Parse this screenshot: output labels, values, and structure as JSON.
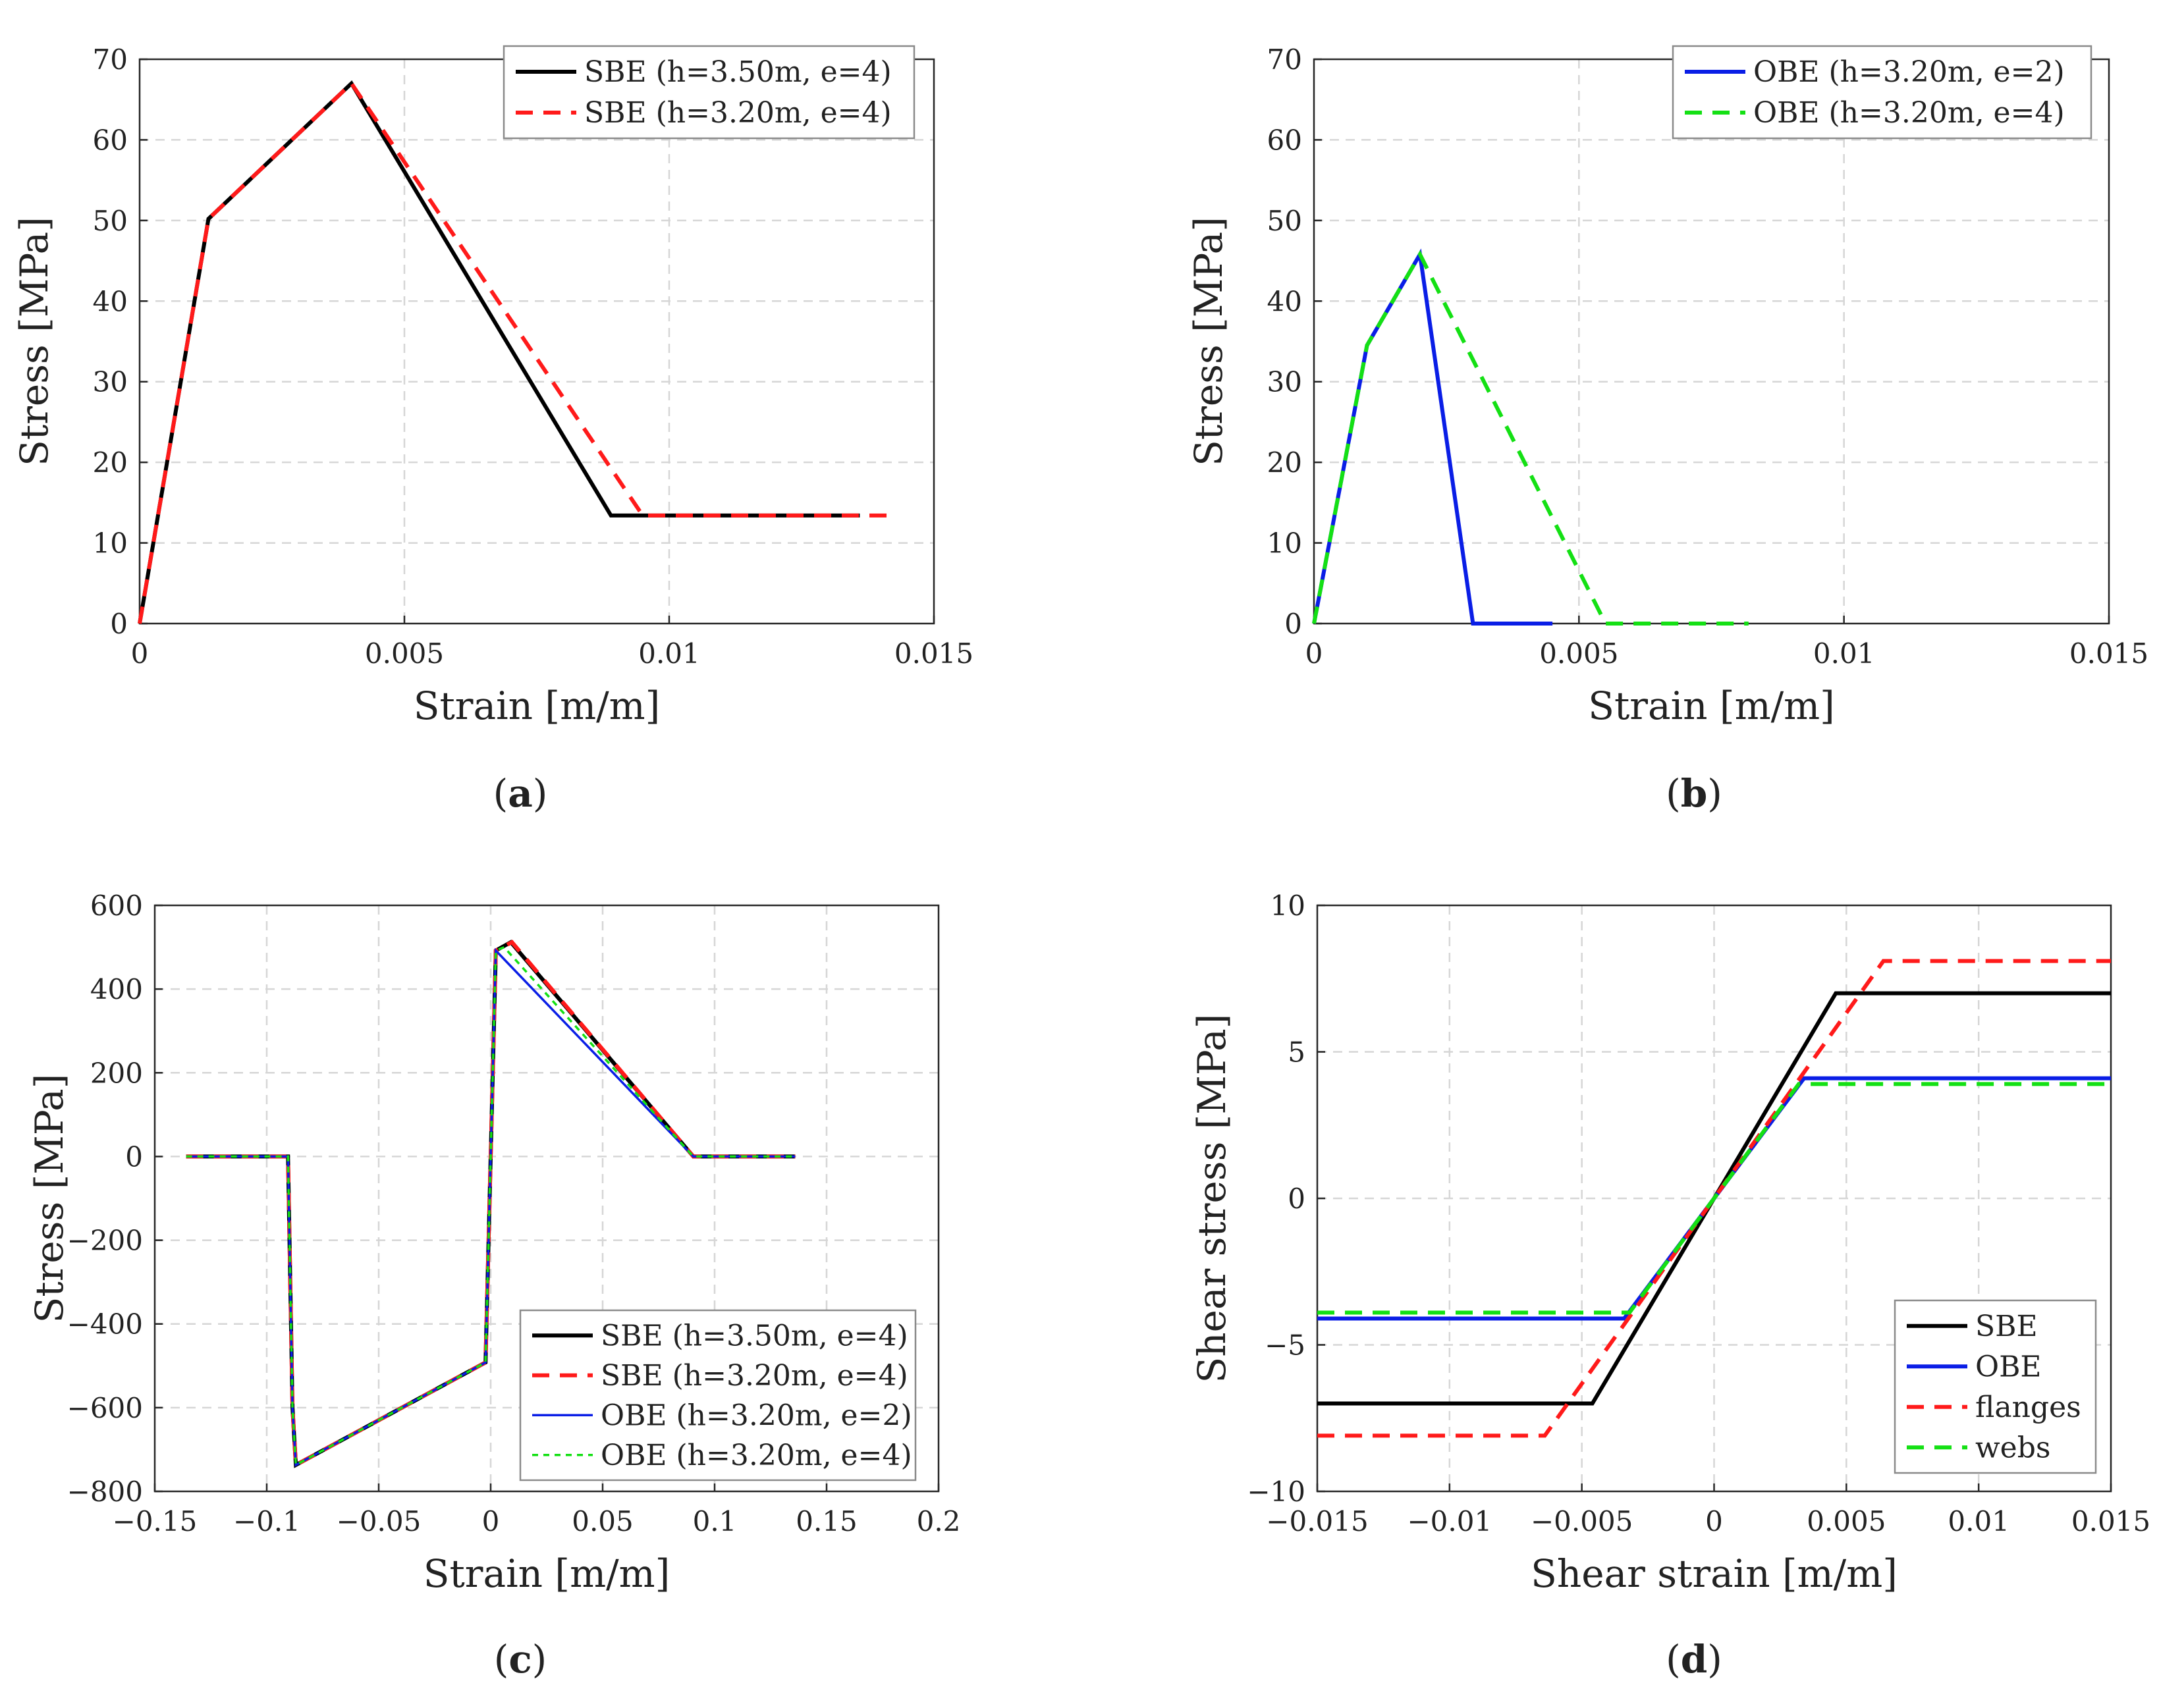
{
  "colors": {
    "black": "#000000",
    "red": "#ff1a1a",
    "blue": "#0a1ee6",
    "green": "#14e014"
  },
  "chart_data": [
    {
      "id": "a",
      "type": "line",
      "caption": "a",
      "xlabel": "Strain [m/m]",
      "ylabel": "Stress [MPa]",
      "xlim": [
        0,
        0.015
      ],
      "ylim": [
        0,
        70
      ],
      "xticks": [
        0,
        0.005,
        0.01,
        0.015
      ],
      "xtick_labels": [
        "0",
        "0.005",
        "0.01",
        "0.015"
      ],
      "yticks": [
        0,
        10,
        20,
        30,
        40,
        50,
        60,
        70
      ],
      "ytick_labels": [
        "0",
        "10",
        "20",
        "30",
        "40",
        "50",
        "60",
        "70"
      ],
      "grid": true,
      "legend_position": "top-right",
      "series": [
        {
          "name": "SBE (h=3.50m, e=4)",
          "color": "black",
          "style": "solid",
          "width": "thick",
          "x": [
            0,
            0.0013,
            0.004,
            0.0089,
            0.0136
          ],
          "y": [
            0,
            50.2,
            67,
            13.4,
            13.4
          ]
        },
        {
          "name": "SBE (h=3.20m, e=4)",
          "color": "red",
          "style": "dashed",
          "width": "thick",
          "x": [
            0,
            0.0013,
            0.004,
            0.0095,
            0.0143
          ],
          "y": [
            0,
            50.2,
            67,
            13.4,
            13.4
          ]
        }
      ]
    },
    {
      "id": "b",
      "type": "line",
      "caption": "b",
      "xlabel": "Strain [m/m]",
      "ylabel": "Stress [MPa]",
      "xlim": [
        0,
        0.015
      ],
      "ylim": [
        0,
        70
      ],
      "xticks": [
        0,
        0.005,
        0.01,
        0.015
      ],
      "xtick_labels": [
        "0",
        "0.005",
        "0.01",
        "0.015"
      ],
      "yticks": [
        0,
        10,
        20,
        30,
        40,
        50,
        60,
        70
      ],
      "ytick_labels": [
        "0",
        "10",
        "20",
        "30",
        "40",
        "50",
        "60",
        "70"
      ],
      "grid": true,
      "legend_position": "top-right",
      "series": [
        {
          "name": "OBE (h=3.20m, e=2)",
          "color": "blue",
          "style": "solid",
          "width": "thick",
          "x": [
            0,
            0.001,
            0.002,
            0.003,
            0.0045
          ],
          "y": [
            0,
            34.5,
            45.8,
            0,
            0
          ]
        },
        {
          "name": "OBE (h=3.20m, e=4)",
          "color": "green",
          "style": "dashed",
          "width": "thick",
          "x": [
            0,
            0.001,
            0.002,
            0.0055,
            0.0082
          ],
          "y": [
            0,
            34.5,
            45.8,
            0,
            0
          ]
        }
      ]
    },
    {
      "id": "c",
      "type": "line",
      "caption": "c",
      "xlabel": "Strain [m/m]",
      "ylabel": "Stress [MPa]",
      "xlim": [
        -0.15,
        0.2
      ],
      "ylim": [
        -800,
        600
      ],
      "xticks": [
        -0.15,
        -0.1,
        -0.05,
        0,
        0.05,
        0.1,
        0.15,
        0.2
      ],
      "xtick_labels": [
        "−0.15",
        "−0.1",
        "−0.05",
        "0",
        "0.05",
        "0.1",
        "0.15",
        "0.2"
      ],
      "yticks": [
        -800,
        -600,
        -400,
        -200,
        0,
        200,
        400,
        600
      ],
      "ytick_labels": [
        "−800",
        "−600",
        "−400",
        "−200",
        "0",
        "200",
        "400",
        "600"
      ],
      "grid": true,
      "legend_position": "bottom-right",
      "series": [
        {
          "name": "SBE (h=3.50m, e=4)",
          "color": "black",
          "style": "solid",
          "width": "thick",
          "x": [
            -0.136,
            -0.0905,
            -0.0885,
            -0.087,
            -0.0023,
            0.0023,
            0.009,
            0.0905,
            0.136
          ],
          "y": [
            0,
            0,
            -600,
            -737,
            -492,
            492,
            512,
            0,
            0
          ]
        },
        {
          "name": "SBE (h=3.20m, e=4)",
          "color": "red",
          "style": "dashed",
          "width": "thick",
          "x": [
            -0.136,
            -0.0905,
            -0.0885,
            -0.087,
            -0.0023,
            0.0023,
            0.0095,
            0.0905,
            0.136
          ],
          "y": [
            0,
            0,
            -600,
            -737,
            -492,
            492,
            512,
            0,
            0
          ]
        },
        {
          "name": "OBE (h=3.20m, e=2)",
          "color": "blue",
          "style": "solid",
          "width": "thin",
          "x": [
            -0.136,
            -0.0905,
            -0.0885,
            -0.087,
            -0.0023,
            0.0023,
            0.0905,
            0.136
          ],
          "y": [
            0,
            0,
            -600,
            -737,
            -492,
            492,
            0,
            0
          ]
        },
        {
          "name": "OBE (h=3.20m, e=4)",
          "color": "green",
          "style": "dotted",
          "width": "thin",
          "x": [
            -0.136,
            -0.0905,
            -0.0885,
            -0.087,
            -0.0023,
            0.0023,
            0.006,
            0.0905,
            0.136
          ],
          "y": [
            0,
            0,
            -600,
            -737,
            -492,
            492,
            500,
            0,
            0
          ]
        }
      ]
    },
    {
      "id": "d",
      "type": "line",
      "caption": "d",
      "xlabel": "Shear strain [m/m]",
      "ylabel": "Shear stress [MPa]",
      "xlim": [
        -0.015,
        0.015
      ],
      "ylim": [
        -10,
        10
      ],
      "xticks": [
        -0.015,
        -0.01,
        -0.005,
        0,
        0.005,
        0.01,
        0.015
      ],
      "xtick_labels": [
        "−0.015",
        "−0.01",
        "−0.005",
        "0",
        "0.005",
        "0.01",
        "0.015"
      ],
      "yticks": [
        -10,
        -5,
        0,
        5,
        10
      ],
      "ytick_labels": [
        "−10",
        "−5",
        "0",
        "5",
        "10"
      ],
      "grid": true,
      "legend_position": "bottom-right",
      "series": [
        {
          "name": "SBE",
          "color": "black",
          "style": "solid",
          "width": "thick",
          "x": [
            -0.015,
            -0.0046,
            0.0046,
            0.015
          ],
          "y": [
            -7.0,
            -7.0,
            7.0,
            7.0
          ]
        },
        {
          "name": "OBE",
          "color": "blue",
          "style": "solid",
          "width": "thick",
          "x": [
            -0.015,
            -0.0034,
            0.0034,
            0.015
          ],
          "y": [
            -4.1,
            -4.1,
            4.1,
            4.1
          ]
        },
        {
          "name": "flanges",
          "color": "red",
          "style": "dashed",
          "width": "thick",
          "x": [
            -0.015,
            -0.0064,
            0.0064,
            0.015
          ],
          "y": [
            -8.1,
            -8.1,
            8.1,
            8.1
          ]
        },
        {
          "name": "webs",
          "color": "green",
          "style": "dashed",
          "width": "thick",
          "x": [
            -0.015,
            -0.0032,
            0.0032,
            0.015
          ],
          "y": [
            -3.9,
            -3.9,
            3.9,
            3.9
          ]
        }
      ]
    }
  ]
}
